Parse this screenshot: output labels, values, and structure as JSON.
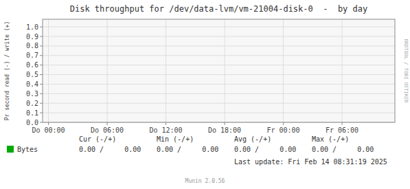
{
  "chart_data": {
    "type": "line",
    "title": "Disk throughput for /dev/data-lvm/vm-21004-disk-0  -  by day",
    "y_label": "Pr second read (-) / write (+)",
    "categories": [
      "Do 00:00",
      "Do 06:00",
      "Do 12:00",
      "Do 18:00",
      "Fr 00:00",
      "Fr 06:00"
    ],
    "series": [
      {
        "name": "Bytes",
        "color": "#00aa00",
        "values": [
          null,
          null,
          null,
          null,
          null,
          null
        ]
      }
    ],
    "ylim": [
      0.0,
      1.08
    ],
    "yticks": [
      {
        "value": 0.0,
        "label": "0.0"
      },
      0.1,
      0.2,
      0.3,
      0.4,
      0.5,
      0.6,
      0.7,
      0.8,
      0.9,
      {
        "value": 1.0,
        "label": "1.0"
      }
    ],
    "grid": true,
    "annotations": [
      "Cur (-/+)",
      "Min (-/+)",
      "Avg (-/+)",
      "Max (-/+)",
      "0.00 /     0.00",
      "0.00 /     0.00",
      "0.00 /     0.00",
      "0.00 /     0.00",
      "Last update: Fri Feb 14 08:31:19 2025",
      "Munin 2.0.56",
      "RRDTOOL / TOBI OETIKER"
    ]
  }
}
